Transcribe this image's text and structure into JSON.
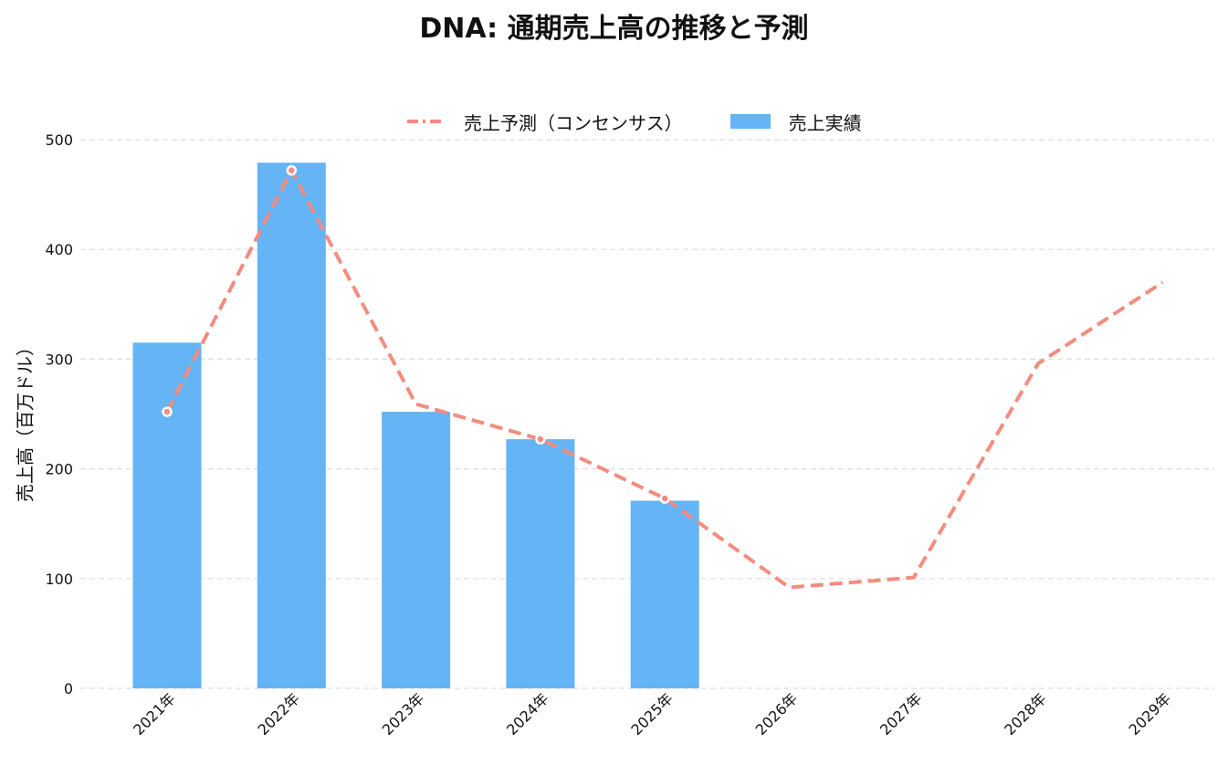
{
  "chart_data": {
    "type": "bar",
    "title": "DNA: 通期売上高の推移と予測",
    "xlabel": "",
    "ylabel": "売上高（百万ドル）",
    "ylim": [
      0,
      500
    ],
    "yticks": [
      0,
      100,
      200,
      300,
      400,
      500
    ],
    "categories": [
      "2021年",
      "2022年",
      "2023年",
      "2024年",
      "2025年",
      "2026年",
      "2027年",
      "2028年",
      "2029年"
    ],
    "grid": true,
    "legend_position": "top-center",
    "series": [
      {
        "name": "売上予測（コンセンサス）",
        "type": "line",
        "style": "dashed",
        "color": "#f48c80",
        "values": [
          252,
          472,
          259,
          227,
          173,
          92,
          101,
          296,
          370
        ],
        "markers": [
          true,
          true,
          false,
          true,
          true,
          false,
          false,
          false,
          false
        ]
      },
      {
        "name": "売上実績",
        "type": "bar",
        "color": "#64b4f6",
        "values": [
          315,
          479,
          252,
          227,
          171,
          null,
          null,
          null,
          null
        ]
      }
    ]
  }
}
